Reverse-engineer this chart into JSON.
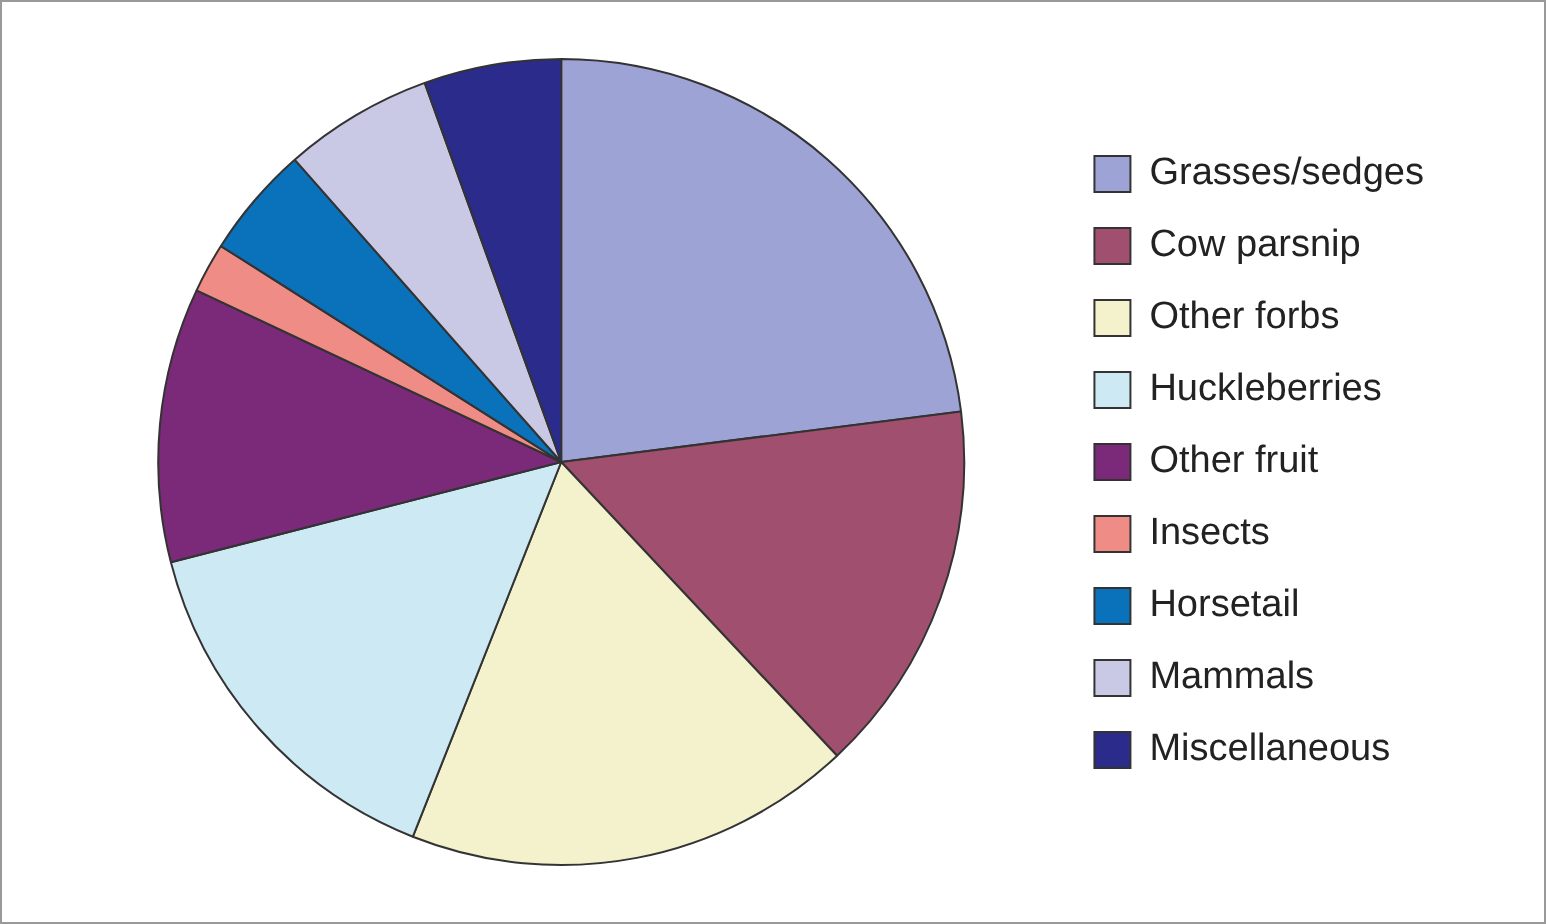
{
  "chart_data": {
    "type": "pie",
    "categories": [
      "Grasses/sedges",
      "Cow parsnip",
      "Other forbs",
      "Huckleberries",
      "Other fruit",
      "Insects",
      "Horsetail",
      "Mammals",
      "Miscellaneous"
    ],
    "values": [
      23,
      15,
      18,
      15,
      11,
      2,
      4.5,
      6,
      5.5
    ],
    "colors": [
      "#9ea3d6",
      "#a0506e",
      "#f3f2cc",
      "#cde9f3",
      "#7a2a78",
      "#f08c86",
      "#0a72bb",
      "#c9c9e6",
      "#2b2b8c"
    ],
    "legend": "right"
  }
}
